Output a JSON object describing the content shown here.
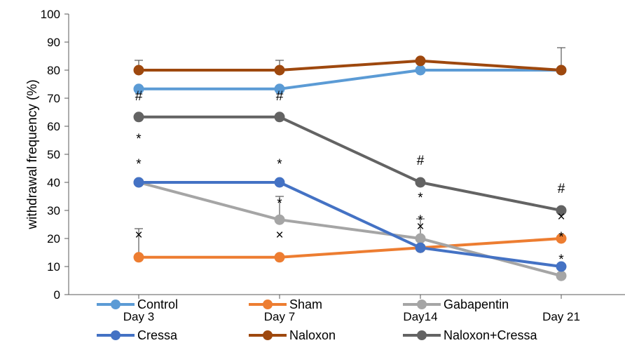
{
  "chart_data": {
    "type": "line",
    "ylabel": "withdrawal frequency (%)",
    "xlabel": "",
    "ylim": [
      0,
      100
    ],
    "yticks": [
      0,
      10,
      20,
      30,
      40,
      50,
      60,
      70,
      80,
      90,
      100
    ],
    "categories": [
      "Day 3",
      "Day 7",
      "Day14",
      "Day 21"
    ],
    "grid": false,
    "legend_position": "bottom",
    "series": [
      {
        "name": "Control",
        "color": "#5B9BD5",
        "values": [
          73.3,
          73.3,
          80,
          80
        ]
      },
      {
        "name": "Sham",
        "color": "#ED7D31",
        "values": [
          13.3,
          13.3,
          16.7,
          20
        ]
      },
      {
        "name": "Gabapentin",
        "color": "#A5A5A5",
        "values": [
          40,
          26.7,
          20,
          6.7
        ]
      },
      {
        "name": "Cressa",
        "color": "#4472C4",
        "values": [
          40,
          40,
          16.7,
          10
        ]
      },
      {
        "name": "Naloxon",
        "color": "#9E480E",
        "values": [
          80,
          80,
          83.3,
          80
        ]
      },
      {
        "name": "Naloxon+Cressa",
        "color": "#636363",
        "values": [
          63.3,
          63.3,
          40,
          30
        ]
      }
    ],
    "error_bars": [
      {
        "series": "Naloxon",
        "category": "Day 3",
        "upper": 83.5
      },
      {
        "series": "Naloxon",
        "category": "Day 7",
        "upper": 83.5
      },
      {
        "series": "Naloxon",
        "category": "Day 21",
        "upper": 88
      },
      {
        "series": "Sham",
        "category": "Day 3",
        "upper": 23.5
      },
      {
        "series": "Gabapentin",
        "category": "Day 7",
        "upper": 35
      },
      {
        "series": "Gabapentin",
        "category": "Day14",
        "upper": 27
      }
    ],
    "annotations": [
      {
        "text": "#",
        "category": "Day 3",
        "y": 71
      },
      {
        "text": "*",
        "category": "Day 3",
        "y": 57
      },
      {
        "text": "*",
        "category": "Day 3",
        "y": 48
      },
      {
        "text": "×",
        "category": "Day 3",
        "y": 21.5
      },
      {
        "text": "#",
        "category": "Day 7",
        "y": 71
      },
      {
        "text": "*",
        "category": "Day 7",
        "y": 48
      },
      {
        "text": "*",
        "category": "Day 7",
        "y": 34
      },
      {
        "text": "×",
        "category": "Day 7",
        "y": 21.5
      },
      {
        "text": "#",
        "category": "Day14",
        "y": 48
      },
      {
        "text": "*",
        "category": "Day14",
        "y": 36
      },
      {
        "text": "*",
        "category": "Day14",
        "y": 28
      },
      {
        "text": "×",
        "category": "Day14",
        "y": 24.5
      },
      {
        "text": "#",
        "category": "Day 21",
        "y": 38
      },
      {
        "text": "×",
        "category": "Day 21",
        "y": 28
      },
      {
        "text": "*",
        "category": "Day 21",
        "y": 22
      },
      {
        "text": "*",
        "category": "Day 21",
        "y": 14
      }
    ]
  }
}
